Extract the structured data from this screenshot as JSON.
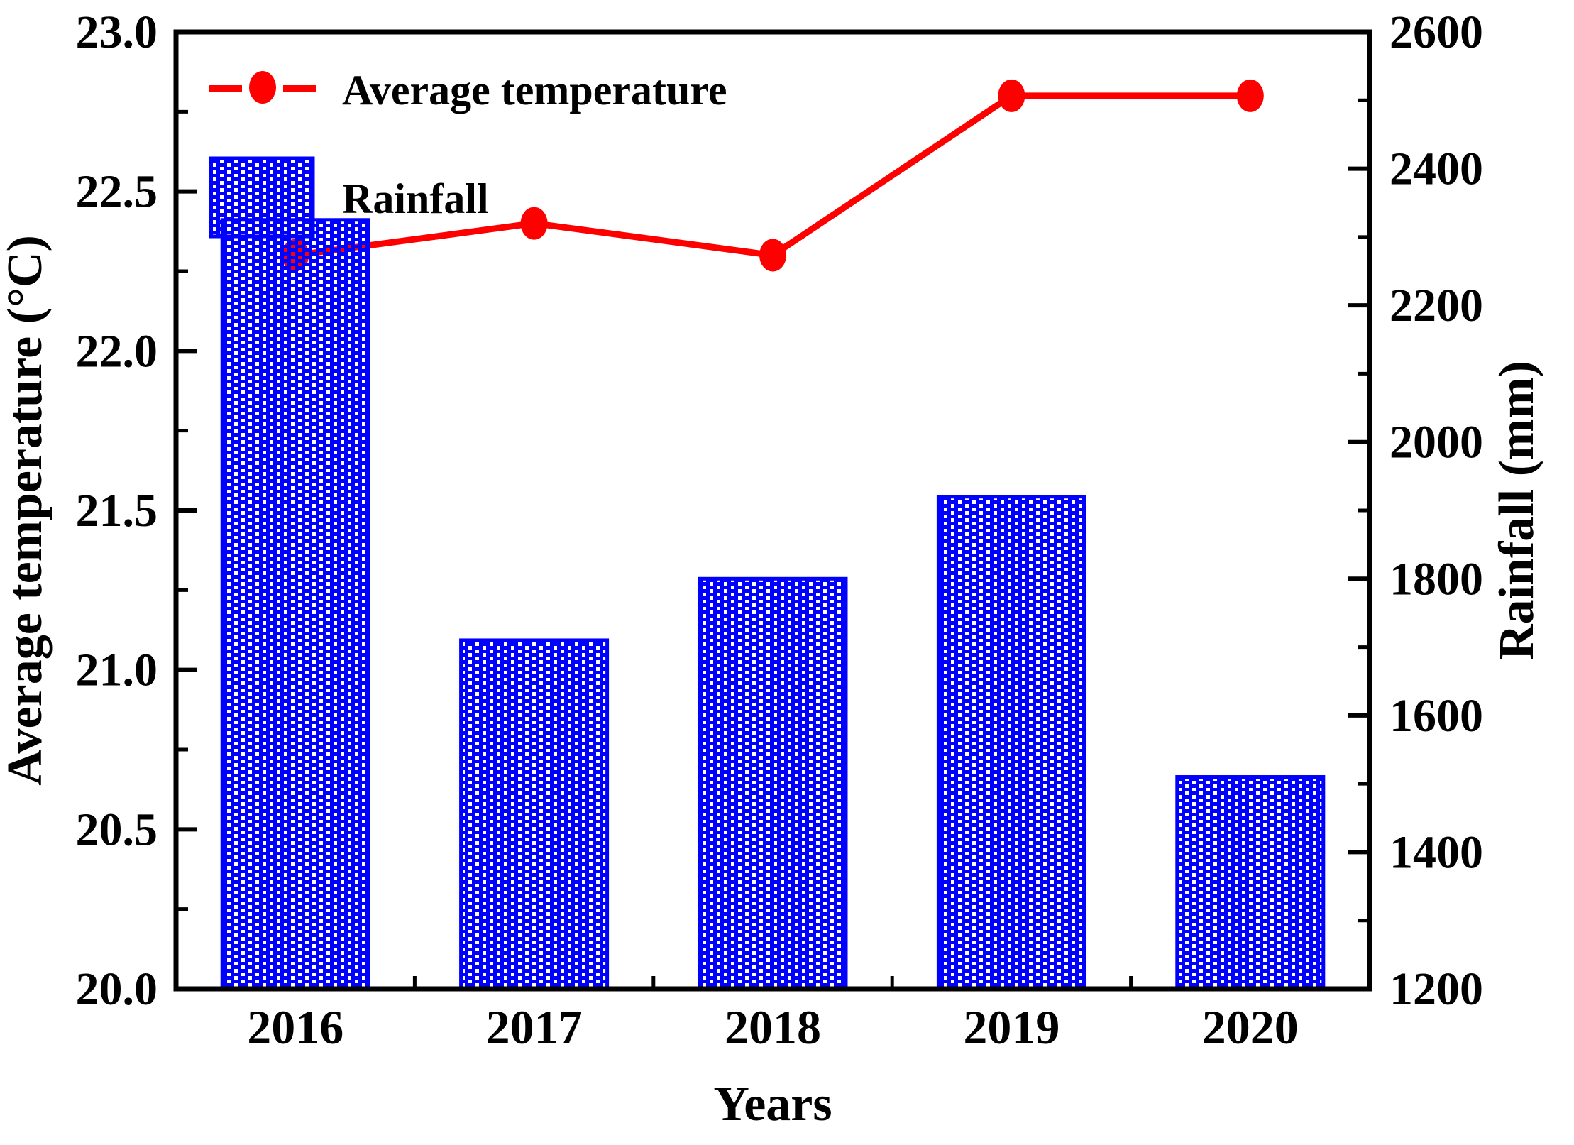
{
  "chart_data": {
    "type": "bar",
    "subtype": "dual-axis bar+line combo",
    "categories": [
      "2016",
      "2017",
      "2018",
      "2019",
      "2020"
    ],
    "series": [
      {
        "name": "Average temperature",
        "type": "line",
        "axis": "left",
        "color": "#ff0000",
        "marker": "filled-circle",
        "values": [
          22.3,
          22.4,
          22.3,
          22.8,
          22.8
        ]
      },
      {
        "name": "Rainfall",
        "type": "bar",
        "axis": "right",
        "color": "#0000ff",
        "fill_pattern": "dense-blue-checker-hatch",
        "values": [
          2325,
          1710,
          1800,
          1920,
          1510
        ]
      }
    ],
    "xlabel": "Years",
    "left_axis": {
      "label": "Average temperature (°C)",
      "min": 20.0,
      "max": 23.0,
      "major_step": 0.5,
      "minor_step": 0.25,
      "tick_labels": [
        "23.0",
        "22.5",
        "22.0",
        "21.5",
        "21.0",
        "20.5",
        "20.0"
      ]
    },
    "right_axis": {
      "label": "Rainfall (mm)",
      "min": 1200,
      "max": 2600,
      "major_step": 200,
      "minor_step": 100,
      "tick_labels": [
        "2600",
        "2400",
        "2200",
        "2000",
        "1800",
        "1600",
        "1400",
        "1200"
      ]
    },
    "legend": {
      "position": "top-left-inside",
      "entries": [
        {
          "label": "Average temperature",
          "symbol": "red-line-with-circle-marker"
        },
        {
          "label": "Rainfall",
          "symbol": "blue-hatched-box"
        }
      ]
    },
    "grid": "off",
    "colors": {
      "line": "#ff0000",
      "bar": "#0000ff",
      "axis": "#000000",
      "background": "#ffffff"
    }
  }
}
